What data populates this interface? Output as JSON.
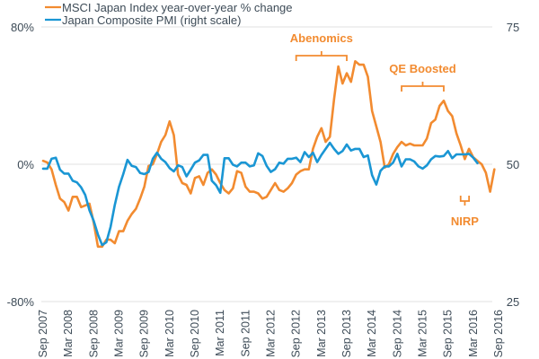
{
  "chart_data": {
    "type": "line",
    "title": "",
    "xlabel": "",
    "ylabel": "",
    "x_start": "Sep 2007",
    "x_frequency": "monthly",
    "x_tick_labels": [
      "Sep 2007",
      "Mar 2008",
      "Sep 2008",
      "Mar 2009",
      "Sep 2009",
      "Mar 2010",
      "Sep 2010",
      "Mar 2011",
      "Sep 2011",
      "Mar 2012",
      "Sep 2012",
      "Mar 2013",
      "Sep 2013",
      "Mar 2014",
      "Sep 2014",
      "Mar 2015",
      "Sep 2015",
      "Mar 2016",
      "Sep 2016"
    ],
    "left_axis": {
      "ticks": [
        80,
        0,
        -80
      ],
      "tick_labels": [
        "80%",
        "0%",
        "-80%"
      ],
      "ylim": [
        -80,
        80
      ]
    },
    "right_axis": {
      "ticks": [
        75,
        50,
        25
      ],
      "tick_labels": [
        "75",
        "50",
        "25"
      ],
      "ylim": [
        25,
        75
      ]
    },
    "grid": true,
    "legend": "top-left",
    "series": [
      {
        "name": "MSCI Japan Index year-over-year % change",
        "axis": "left",
        "color": "#f28b30",
        "values": [
          2,
          1,
          -3,
          -12,
          -20,
          -22,
          -27,
          -19,
          -19,
          -25,
          -24,
          -23,
          -34,
          -48,
          -48,
          -44,
          -44,
          -46,
          -39,
          -39,
          -33,
          -29,
          -26,
          -20,
          -13,
          -1,
          0,
          6,
          13,
          17,
          25,
          17,
          -6,
          -11,
          -12,
          -17,
          -8,
          -7,
          -12,
          -5,
          -3,
          -6,
          -11,
          -15,
          -17,
          -14,
          -4,
          -5,
          -13,
          -16,
          -16,
          -17,
          -20,
          -19,
          -15,
          -11,
          -15,
          -16,
          -14,
          -11,
          -6,
          -4,
          -3,
          -3,
          9,
          16,
          21,
          13,
          16,
          38,
          57,
          47,
          53,
          48,
          60,
          58,
          58,
          51,
          31,
          22,
          13,
          -2,
          0,
          6,
          10,
          13,
          11,
          12,
          11,
          11,
          11,
          15,
          24,
          26,
          34,
          37,
          31,
          28,
          18,
          11,
          3,
          9,
          4,
          2,
          0,
          -5,
          -16,
          -3
        ]
      },
      {
        "name": "Japan Composite PMI (right scale)",
        "axis": "right",
        "color": "#1a96d4",
        "values": [
          49.2,
          49.2,
          51,
          51.2,
          49,
          48.3,
          48.3,
          47,
          46.7,
          45.8,
          44.4,
          41.6,
          39.7,
          37.2,
          35.3,
          35.8,
          38.6,
          42.6,
          45.9,
          48.2,
          50.8,
          49.7,
          49.5,
          48.4,
          48.2,
          48.6,
          51,
          52.1,
          51,
          50.4,
          49.3,
          48.7,
          49.8,
          49.5,
          47.8,
          49,
          50.3,
          50.7,
          51.7,
          51.7,
          47,
          46.2,
          44.8,
          51.1,
          51.1,
          49.9,
          49.6,
          50.3,
          50.3,
          49.6,
          49.8,
          52,
          51.5,
          49.7,
          48.6,
          49.1,
          50.3,
          50.1,
          51,
          51,
          51.2,
          50.4,
          52.2,
          51.3,
          52.1,
          50.4,
          51.7,
          52.8,
          53.9,
          52.8,
          51.9,
          52.4,
          53.6,
          52.5,
          52.8,
          52.8,
          51.3,
          51.6,
          48,
          46.3,
          48.8,
          49.6,
          49.6,
          50.3,
          51.9,
          49.6,
          50.9,
          50.9,
          50.5,
          49.6,
          49.2,
          49.8,
          50.9,
          51.5,
          51.4,
          51.5,
          52.4,
          51.1,
          51.8,
          51.8,
          51.8,
          51.9,
          51.2,
          50.2,
          null,
          null,
          null,
          null,
          null
        ]
      }
    ],
    "annotations": [
      {
        "text": "Abenomics",
        "series": "MSCI Japan Index year-over-year % change",
        "span": [
          "Sep 2012",
          "Sep 2013"
        ],
        "position": "above"
      },
      {
        "text": "QE Boosted",
        "series": "MSCI Japan Index year-over-year % change",
        "span": [
          "Oct 2014",
          "Aug 2015"
        ],
        "position": "above"
      },
      {
        "text": "NIRP",
        "series": "MSCI Japan Index year-over-year % change",
        "span": [
          "Dec 2015",
          "Feb 2016"
        ],
        "position": "below"
      }
    ]
  }
}
